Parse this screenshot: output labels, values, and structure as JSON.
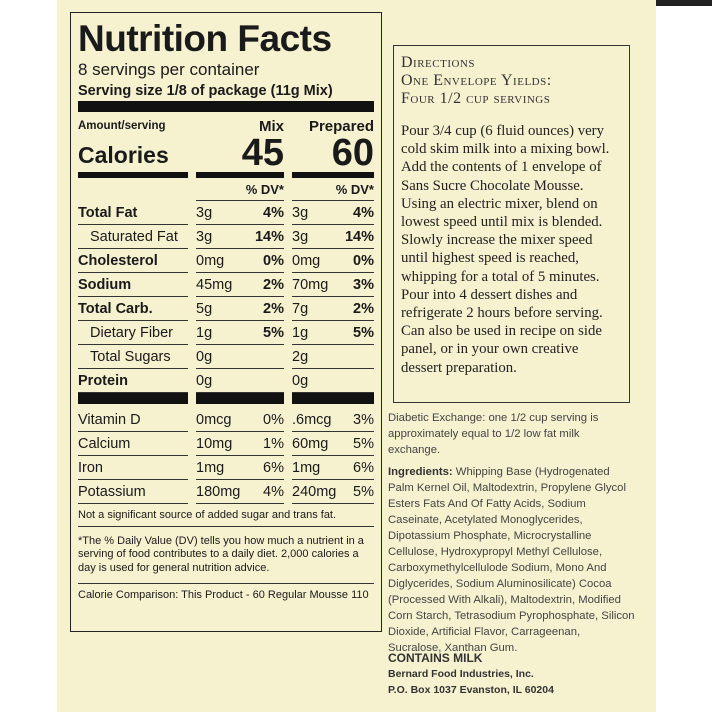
{
  "nutrition": {
    "title": "Nutrition Facts",
    "servings": "8 servings per container",
    "serving_size": "Serving size 1/8 of package (11g Mix)",
    "amount_label": "Amount/serving",
    "calories_label": "Calories",
    "columns": [
      "Mix",
      "Prepared"
    ],
    "calories": [
      "45",
      "60"
    ],
    "dv_header": [
      "% DV*",
      "% DV*"
    ],
    "nutrients": [
      {
        "name": "Total Fat",
        "style": "main",
        "mix": "3g",
        "mix_dv": "4%",
        "prep": "3g",
        "prep_dv": "4%"
      },
      {
        "name": "Saturated Fat",
        "style": "sub",
        "mix": "3g",
        "mix_dv": "14%",
        "prep": "3g",
        "prep_dv": "14%"
      },
      {
        "name": "Cholesterol",
        "style": "main",
        "mix": "0mg",
        "mix_dv": "0%",
        "prep": "0mg",
        "prep_dv": "0%"
      },
      {
        "name": "Sodium",
        "style": "main",
        "mix": "45mg",
        "mix_dv": "2%",
        "prep": "70mg",
        "prep_dv": "3%"
      },
      {
        "name": "Total Carb.",
        "style": "main",
        "mix": "5g",
        "mix_dv": "2%",
        "prep": "7g",
        "prep_dv": "2%"
      },
      {
        "name": "Dietary Fiber",
        "style": "sub",
        "mix": "1g",
        "mix_dv": "5%",
        "prep": "1g",
        "prep_dv": "5%"
      },
      {
        "name": "Total Sugars",
        "style": "sub",
        "mix": "0g",
        "prep": "2g"
      },
      {
        "name": "Protein",
        "style": "main",
        "mix": "0g",
        "prep": "0g"
      }
    ],
    "vitamins": [
      {
        "name": "Vitamin D",
        "mix": "0mcg",
        "mix_dv": "0%",
        "prep": ".6mcg",
        "prep_dv": "3%"
      },
      {
        "name": "Calcium",
        "mix": "10mg",
        "mix_dv": "1%",
        "prep": "60mg",
        "prep_dv": "5%"
      },
      {
        "name": "Iron",
        "mix": "1mg",
        "mix_dv": "6%",
        "prep": "1mg",
        "prep_dv": "6%"
      },
      {
        "name": "Potassium",
        "mix": "180mg",
        "mix_dv": "4%",
        "prep": "240mg",
        "prep_dv": "5%"
      }
    ],
    "note": "Not a significant source of added sugar and trans fat.",
    "footnote": "*The % Daily Value (DV) tells you how much a nutrient in a serving of food contributes to a daily diet. 2,000 calories a day is used for general nutrition advice.",
    "comparison": "Calorie Comparison: This Product - 60 Regular Mousse 110"
  },
  "directions": {
    "heading": [
      "Directions",
      "One Envelope Yields:",
      "Four 1/2 cup servings"
    ],
    "body": "Pour 3/4 cup (6 fluid ounces) very cold skim milk into a mixing bowl. Add the contents of 1 envelope of Sans Sucre Chocolate Mousse. Using an electric mixer, blend on lowest speed until mix is blended. Slowly increase the mixer speed until highest speed is reached, whipping for a total of 5 minutes. Pour into 4 dessert dishes and refrigerate 2 hours before serving. Can also be used in recipe on side panel, or in your own creative dessert preparation."
  },
  "diabetic": "Diabetic Exchange: one 1/2 cup serving is approximately equal to 1/2 low fat milk exchange.",
  "ingredients": {
    "label": "Ingredients:",
    "text": "Whipping Base (Hydrogenated Palm Kernel Oil, Maltodextrin, Propylene Glycol Esters Fats And Of Fatty Acids, Sodium Caseinate, Acetylated Monoglycerides, Dipotassium Phosphate, Microcrystalline Cellulose, Hydroxypropyl Methyl Cellulose, Carboxymethylcellulode Sodium, Mono And Diglycerides, Sodium Aluminosilicate) Cocoa (Processed With Alkali), Maltodextrin, Modified Corn Starch, Tetrasodium Pyrophosphate, Silicon Dioxide, Artificial Flavor, Carrageenan, Sucralose, Xanthan Gum."
  },
  "allergen": "CONTAINS MILK",
  "company": {
    "name": "Bernard Food Industries, Inc.",
    "address": "P.O. Box 1037 Evanston, IL 60204"
  }
}
